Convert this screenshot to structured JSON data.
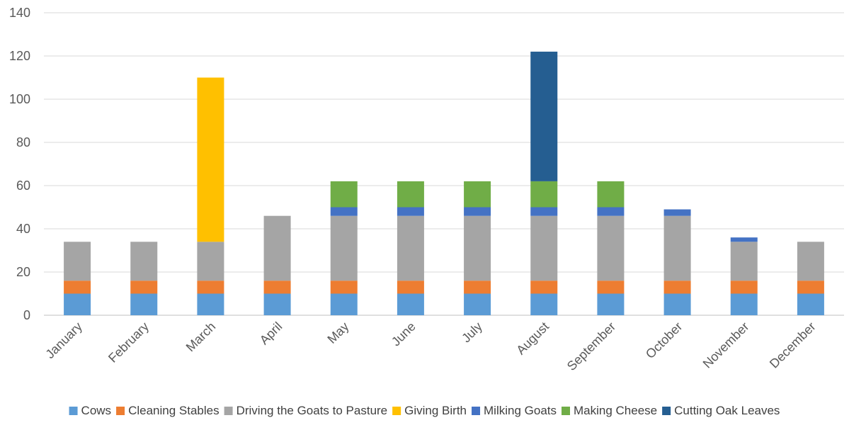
{
  "chart_data": {
    "type": "bar",
    "stacked": true,
    "categories": [
      "January",
      "February",
      "March",
      "April",
      "May",
      "June",
      "July",
      "August",
      "September",
      "October",
      "November",
      "December"
    ],
    "series": [
      {
        "name": "Cows",
        "color": "#5b9bd5",
        "values": [
          10,
          10,
          10,
          10,
          10,
          10,
          10,
          10,
          10,
          10,
          10,
          10
        ]
      },
      {
        "name": "Cleaning Stables",
        "color": "#ed7d31",
        "values": [
          6,
          6,
          6,
          6,
          6,
          6,
          6,
          6,
          6,
          6,
          6,
          6
        ]
      },
      {
        "name": "Driving the Goats to Pasture",
        "color": "#a5a5a5",
        "values": [
          18,
          18,
          18,
          30,
          30,
          30,
          30,
          30,
          30,
          30,
          18,
          18
        ]
      },
      {
        "name": "Giving Birth",
        "color": "#ffc000",
        "values": [
          0,
          0,
          76,
          0,
          0,
          0,
          0,
          0,
          0,
          0,
          0,
          0
        ]
      },
      {
        "name": "Milking Goats",
        "color": "#4472c4",
        "values": [
          0,
          0,
          0,
          0,
          4,
          4,
          4,
          4,
          4,
          3,
          2,
          0
        ]
      },
      {
        "name": "Making Cheese",
        "color": "#70ad47",
        "values": [
          0,
          0,
          0,
          0,
          12,
          12,
          12,
          12,
          12,
          0,
          0,
          0
        ]
      },
      {
        "name": "Cutting Oak Leaves",
        "color": "#255e91",
        "values": [
          0,
          0,
          0,
          0,
          0,
          0,
          0,
          60,
          0,
          0,
          0,
          0
        ]
      }
    ],
    "y_ticks": [
      "0",
      "20",
      "40",
      "60",
      "80",
      "100",
      "120",
      "140"
    ],
    "ylim": [
      0,
      140
    ],
    "grid": true,
    "legend_position": "bottom"
  }
}
